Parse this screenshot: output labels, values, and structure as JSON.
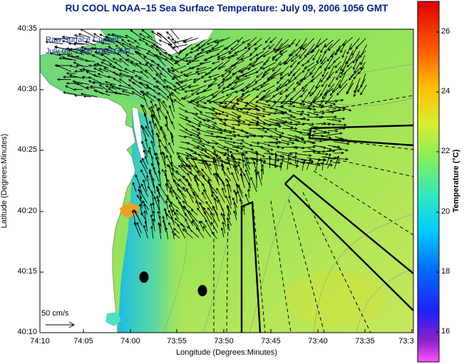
{
  "title": "RU COOL  NOAA–15  Sea Surface Temperature:  July 09, 2006 1056 GMT",
  "overlay": {
    "line1": "Raw Surface Current",
    "line2": "July 09, 2006 1000 GMT"
  },
  "y_axis": {
    "label": "Latitude (Degrees:Minutes)",
    "ticks": [
      "40:35",
      "40:30",
      "40:25",
      "40:20",
      "40:15",
      "40:10"
    ]
  },
  "x_axis": {
    "label": "Longitude (Degrees:Minutes)",
    "ticks": [
      "74:10",
      "74:05",
      "74:00",
      "73:55",
      "73:50",
      "73:45",
      "73:40",
      "73:35",
      "73:3"
    ]
  },
  "colorbar": {
    "label": "Temperature (°C)",
    "ticks": [
      "26",
      "24",
      "22",
      "20",
      "18",
      "16"
    ],
    "range": [
      15,
      27
    ]
  },
  "scale_arrow": {
    "label": "50 cm/s"
  },
  "colors": {
    "title": "#00208a",
    "water_mid": "#66e07a",
    "land": "#ffffff",
    "arrows": "#000000"
  }
}
